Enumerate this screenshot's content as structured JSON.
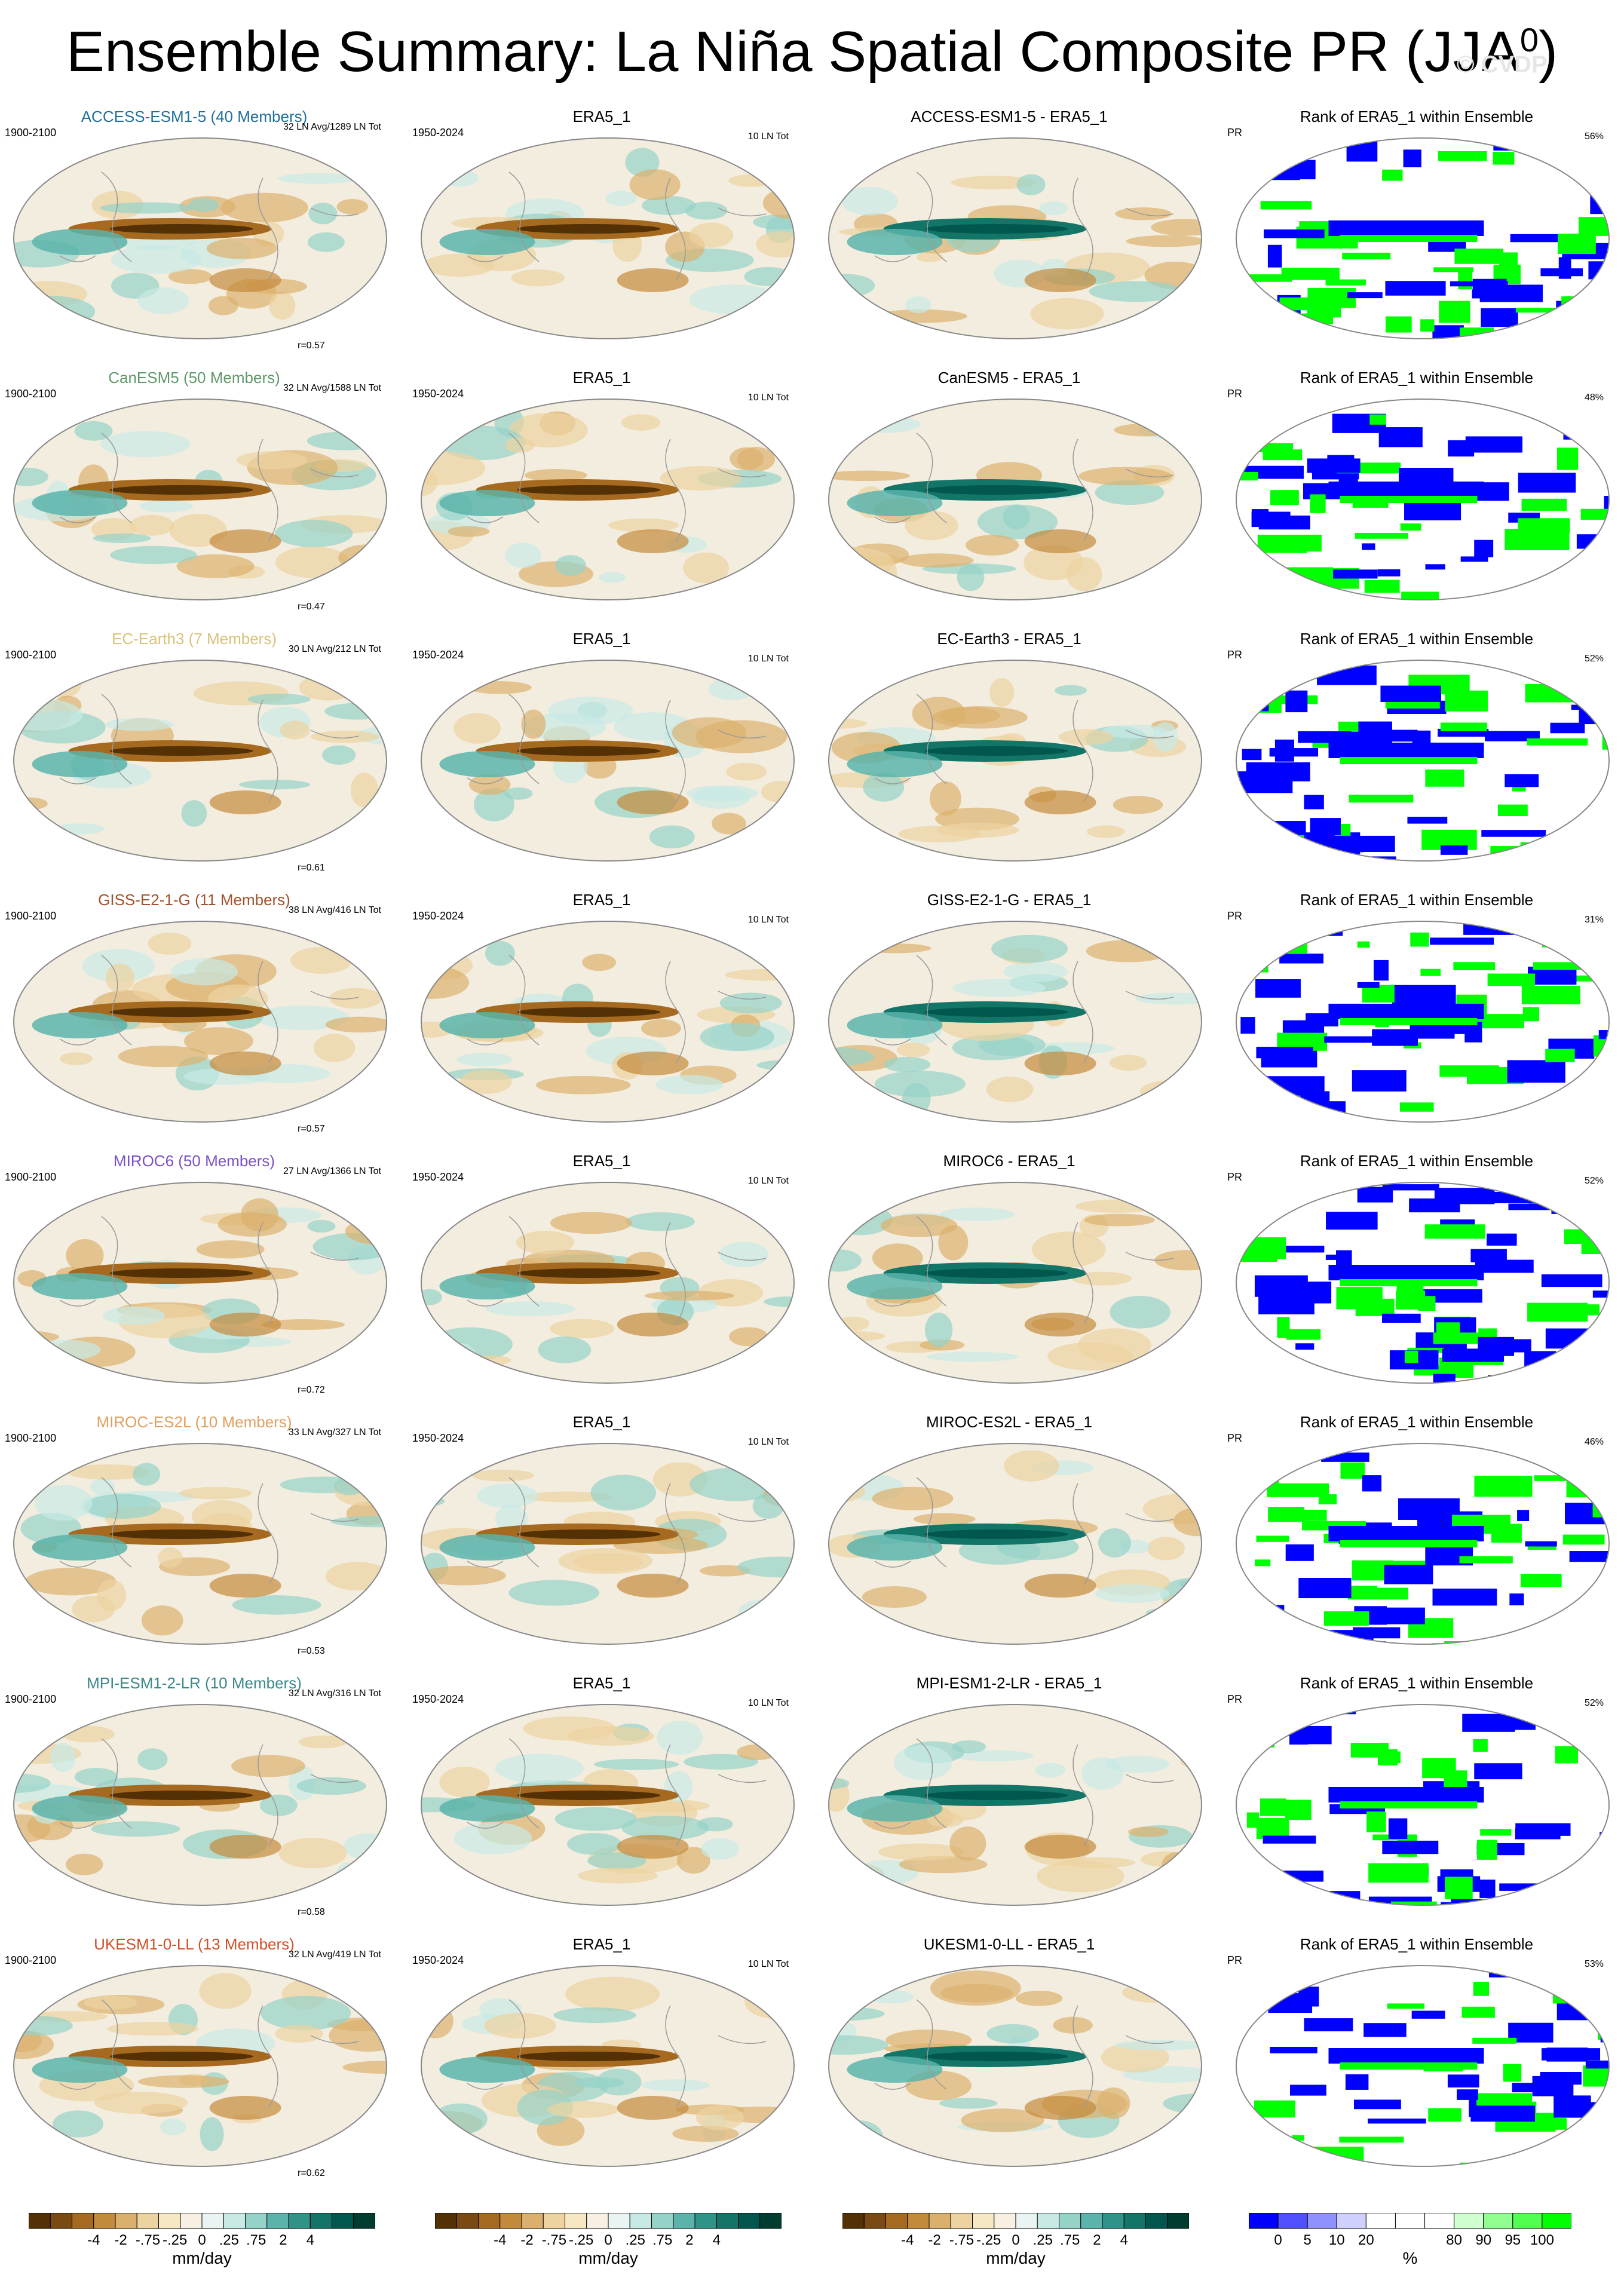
{
  "page": {
    "title": "Ensemble Summary: La Niña Spatial Composite PR (JJA",
    "title_sup": "0",
    "title_close": ")",
    "watermark": "© CVDP"
  },
  "chart_data": {
    "type": "heatmap",
    "variable": "PR",
    "season": "JJA",
    "rows": [
      {
        "model": "ACCESS-ESM1-5 (40 Members)",
        "color": "#1f6f9a",
        "period": "1900-2100",
        "avg_label": "32 LN Avg/1289 LN Tot",
        "corr": "r=0.57",
        "diff_title": "ACCESS-ESM1-5 - ERA5_1",
        "rank_pct": "56%",
        "tint": 0.0
      },
      {
        "model": "CanESM5 (50 Members)",
        "color": "#5f9a6a",
        "period": "1900-2100",
        "avg_label": "32 LN Avg/1588 LN Tot",
        "corr": "r=0.47",
        "diff_title": "CanESM5 - ERA5_1",
        "rank_pct": "48%",
        "tint": 0.2
      },
      {
        "model": "EC-Earth3 (7 Members)",
        "color": "#d9c27a",
        "period": "1900-2100",
        "avg_label": "30 LN Avg/212 LN Tot",
        "corr": "r=0.61",
        "diff_title": "EC-Earth3 - ERA5_1",
        "rank_pct": "52%",
        "tint": 0.4
      },
      {
        "model": "GISS-E2-1-G (11 Members)",
        "color": "#a0522d",
        "period": "1900-2100",
        "avg_label": "38 LN Avg/416 LN Tot",
        "corr": "r=0.57",
        "diff_title": "GISS-E2-1-G - ERA5_1",
        "rank_pct": "31%",
        "tint": 0.6
      },
      {
        "model": "MIROC6 (50 Members)",
        "color": "#7b4fc8",
        "period": "1900-2100",
        "avg_label": "27 LN Avg/1366 LN Tot",
        "corr": "r=0.72",
        "diff_title": "MIROC6 - ERA5_1",
        "rank_pct": "52%",
        "tint": 0.8
      },
      {
        "model": "MIROC-ES2L (10 Members)",
        "color": "#e0a060",
        "period": "1900-2100",
        "avg_label": "33 LN Avg/327 LN Tot",
        "corr": "r=0.53",
        "diff_title": "MIROC-ES2L - ERA5_1",
        "rank_pct": "46%",
        "tint": 1.0
      },
      {
        "model": "MPI-ESM1-2-LR (10 Members)",
        "color": "#3a8a8a",
        "period": "1900-2100",
        "avg_label": "32 LN Avg/316 LN Tot",
        "corr": "r=0.58",
        "diff_title": "MPI-ESM1-2-LR - ERA5_1",
        "rank_pct": "52%",
        "tint": 0.3
      },
      {
        "model": "UKESM1-0-LL (13 Members)",
        "color": "#d0502a",
        "period": "1900-2100",
        "avg_label": "32 LN Avg/419 LN Tot",
        "corr": "r=0.62",
        "diff_title": "UKESM1-0-LL - ERA5_1",
        "rank_pct": "53%",
        "tint": 0.7
      }
    ],
    "obs": {
      "title": "ERA5_1",
      "period": "1950-2024",
      "tot_label": "10 LN Tot"
    },
    "rank_panel": {
      "title": "Rank of ERA5_1 within Ensemble",
      "var_label": "PR"
    },
    "colorbars": {
      "main": {
        "labels": [
          "-4",
          "-2",
          "-.75",
          "-.25",
          "0",
          ".25",
          ".75",
          "2",
          "4"
        ],
        "units": "mm/day",
        "colors": [
          "#543005",
          "#7a4a12",
          "#a5691f",
          "#c48a3c",
          "#dbb06c",
          "#ecd3a0",
          "#f6e8c3",
          "#f7f0e3",
          "#eaf4f2",
          "#c7eae5",
          "#95d3c9",
          "#5ab4ac",
          "#2f9389",
          "#127568",
          "#01574d",
          "#003c30"
        ]
      },
      "rank": {
        "labels": [
          "0",
          "5",
          "10",
          "20",
          "80",
          "90",
          "95",
          "100"
        ],
        "units": "%",
        "colors": [
          "#0000ff",
          "#5050ff",
          "#9090ff",
          "#d0d0ff",
          "#ffffff",
          "#ffffff",
          "#ffffff",
          "#d0ffd0",
          "#90ff90",
          "#50ff50",
          "#00ff00"
        ]
      }
    }
  }
}
